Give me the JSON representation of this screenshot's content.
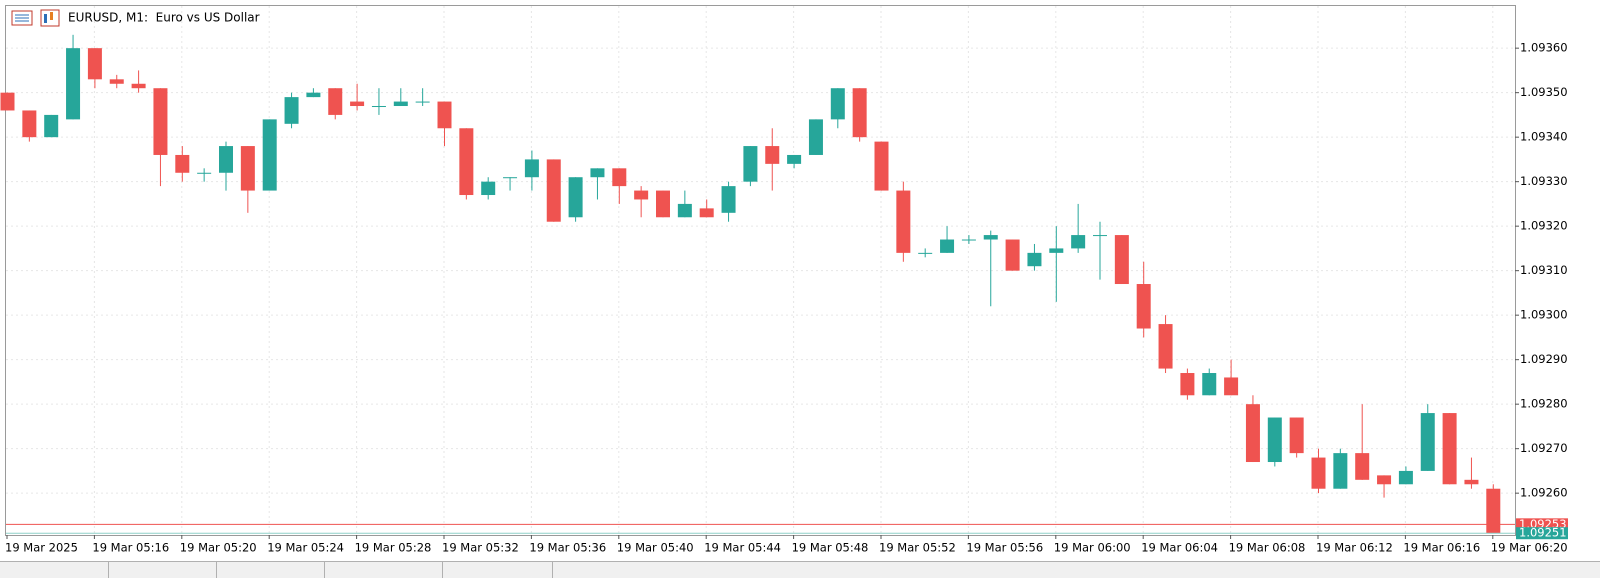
{
  "chart_data": {
    "type": "candlestick",
    "title": "EURUSD, M1:  Euro vs US Dollar",
    "categories": [
      "19 Mar 2025",
      null,
      null,
      null,
      "19 Mar 05:16",
      null,
      null,
      null,
      "19 Mar 05:20",
      null,
      null,
      null,
      "19 Mar 05:24",
      null,
      null,
      null,
      "19 Mar 05:28",
      null,
      null,
      null,
      "19 Mar 05:32",
      null,
      null,
      null,
      "19 Mar 05:36",
      null,
      null,
      null,
      "19 Mar 05:40",
      null,
      null,
      null,
      "19 Mar 05:44",
      null,
      null,
      null,
      "19 Mar 05:48",
      null,
      null,
      null,
      "19 Mar 05:52",
      null,
      null,
      null,
      "19 Mar 05:56",
      null,
      null,
      null,
      "19 Mar 06:00",
      null,
      null,
      null,
      "19 Mar 06:04",
      null,
      null,
      null,
      "19 Mar 06:08",
      null,
      null,
      null,
      "19 Mar 06:12",
      null,
      null,
      null,
      "19 Mar 06:16",
      null,
      null,
      null,
      "19 Mar 06:20"
    ],
    "open": [
      1.0935,
      1.09346,
      1.0934,
      1.09344,
      1.0936,
      1.09353,
      1.09352,
      1.09351,
      1.09336,
      1.09332,
      1.09332,
      1.09338,
      1.09328,
      1.09343,
      1.09349,
      1.09351,
      1.09348,
      1.09347,
      1.09347,
      1.09348,
      1.09348,
      1.09342,
      1.09327,
      1.09331,
      1.09331,
      1.09335,
      1.09322,
      1.09331,
      1.09333,
      1.09328,
      1.09328,
      1.09322,
      1.09324,
      1.09323,
      1.0933,
      1.09338,
      1.09334,
      1.09336,
      1.09344,
      1.09351,
      1.09339,
      1.09328,
      1.09314,
      1.09314,
      1.09317,
      1.09317,
      1.09317,
      1.09311,
      1.09314,
      1.09315,
      1.09318,
      1.09318,
      1.09307,
      1.09298,
      1.09287,
      1.09282,
      1.09286,
      1.0928,
      1.09267,
      1.09277,
      1.09268,
      1.09261,
      1.09269,
      1.09264,
      1.09262,
      1.09265,
      1.09278,
      1.09263,
      1.09261
    ],
    "high": [
      1.0935,
      1.09346,
      1.09345,
      1.09363,
      1.0936,
      1.09354,
      1.09355,
      1.09351,
      1.09338,
      1.09333,
      1.09339,
      1.09338,
      1.09344,
      1.0935,
      1.09351,
      1.09351,
      1.09352,
      1.09351,
      1.09351,
      1.09351,
      1.09348,
      1.09342,
      1.09331,
      1.09331,
      1.09337,
      1.09335,
      1.09331,
      1.09333,
      1.09333,
      1.09329,
      1.09328,
      1.09328,
      1.09326,
      1.0933,
      1.09338,
      1.09342,
      1.09336,
      1.09344,
      1.09351,
      1.09351,
      1.09339,
      1.0933,
      1.09315,
      1.0932,
      1.09318,
      1.09319,
      1.09317,
      1.09316,
      1.0932,
      1.09325,
      1.09321,
      1.09318,
      1.09312,
      1.093,
      1.09288,
      1.09288,
      1.0929,
      1.09282,
      1.09277,
      1.09277,
      1.0927,
      1.0927,
      1.0928,
      1.09264,
      1.09266,
      1.0928,
      1.09278,
      1.09268,
      1.09262
    ],
    "low": [
      1.09346,
      1.09339,
      1.0934,
      1.09344,
      1.09351,
      1.09351,
      1.0935,
      1.09329,
      1.0933,
      1.0933,
      1.09328,
      1.09323,
      1.09328,
      1.09342,
      1.09349,
      1.09344,
      1.09346,
      1.09345,
      1.09347,
      1.09347,
      1.09338,
      1.09326,
      1.09326,
      1.09328,
      1.09328,
      1.09321,
      1.09321,
      1.09326,
      1.09325,
      1.09322,
      1.09322,
      1.09322,
      1.09322,
      1.09321,
      1.09329,
      1.09328,
      1.09333,
      1.09336,
      1.09342,
      1.09339,
      1.09328,
      1.09312,
      1.09313,
      1.09314,
      1.09316,
      1.09302,
      1.0931,
      1.0931,
      1.09303,
      1.09314,
      1.09308,
      1.09307,
      1.09295,
      1.09287,
      1.09281,
      1.09282,
      1.09282,
      1.09267,
      1.09266,
      1.09268,
      1.0926,
      1.09261,
      1.09263,
      1.09259,
      1.09262,
      1.09265,
      1.09262,
      1.09261,
      1.09251
    ],
    "close": [
      1.09346,
      1.0934,
      1.09345,
      1.0936,
      1.09353,
      1.09352,
      1.09351,
      1.09336,
      1.09332,
      1.09332,
      1.09338,
      1.09328,
      1.09344,
      1.09349,
      1.0935,
      1.09345,
      1.09347,
      1.09347,
      1.09348,
      1.09348,
      1.09342,
      1.09327,
      1.0933,
      1.09331,
      1.09335,
      1.09321,
      1.09331,
      1.09333,
      1.09329,
      1.09326,
      1.09322,
      1.09325,
      1.09322,
      1.09329,
      1.09338,
      1.09334,
      1.09336,
      1.09344,
      1.09351,
      1.0934,
      1.09328,
      1.09314,
      1.09314,
      1.09317,
      1.09317,
      1.09318,
      1.0931,
      1.09314,
      1.09315,
      1.09318,
      1.09318,
      1.09307,
      1.09297,
      1.09288,
      1.09282,
      1.09287,
      1.09282,
      1.09267,
      1.09277,
      1.09269,
      1.09261,
      1.09269,
      1.09263,
      1.09262,
      1.09265,
      1.09278,
      1.09262,
      1.09262,
      1.09251
    ],
    "up_color": "#26a69a",
    "down_color": "#ef5350",
    "ylim": [
      1.092506,
      1.093697
    ],
    "yticks": [
      {
        "value": 1.0936,
        "label": "1.09360"
      },
      {
        "value": 1.0935,
        "label": "1.09350"
      },
      {
        "value": 1.0934,
        "label": "1.09340"
      },
      {
        "value": 1.0933,
        "label": "1.09330"
      },
      {
        "value": 1.0932,
        "label": "1.09320"
      },
      {
        "value": 1.0931,
        "label": "1.09310"
      },
      {
        "value": 1.093,
        "label": "1.09300"
      },
      {
        "value": 1.0929,
        "label": "1.09290"
      },
      {
        "value": 1.0928,
        "label": "1.09280"
      },
      {
        "value": 1.0927,
        "label": "1.09270"
      },
      {
        "value": 1.0926,
        "label": "1.09260"
      }
    ],
    "ask_line": 1.09253,
    "bid_line": 1.09251,
    "grid": true
  }
}
